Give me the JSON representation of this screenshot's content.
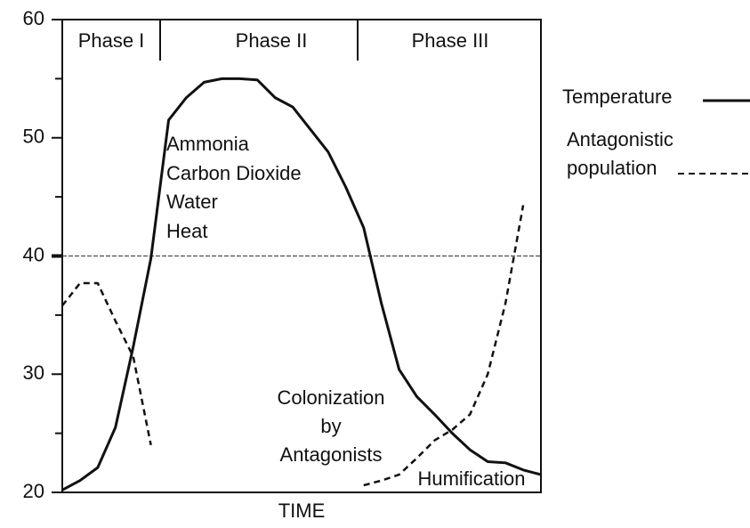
{
  "chart_data": {
    "type": "line",
    "xlabel": "TIME",
    "categories": [
      null,
      null,
      null,
      null,
      null,
      null,
      null,
      null,
      null,
      null,
      null,
      null,
      null,
      null,
      null,
      null,
      null,
      null,
      null,
      null,
      null,
      null,
      null,
      null,
      null,
      null,
      null,
      null
    ],
    "series": [
      {
        "name": "Temperature",
        "color": "#111111",
        "dash": "solid",
        "values": [
          20.2,
          21.0,
          22.1,
          25.5,
          32.3,
          39.8,
          51.5,
          53.4,
          54.7,
          55,
          55,
          54.9,
          53.4,
          52.6,
          50.7,
          48.8,
          45.8,
          42.4,
          36.0,
          30.4,
          28.1,
          26.6,
          25.0,
          23.6,
          22.6,
          22.5,
          21.9,
          21.5
        ]
      },
      {
        "name": "Antagonistic population",
        "color": "#111111",
        "dash": "dashed",
        "values": [
          35.8,
          37.7,
          37.7,
          34.5,
          31.5,
          24.0,
          null,
          null,
          null,
          null,
          null,
          null,
          null,
          null,
          null,
          null,
          null,
          20.6,
          21.0,
          21.5,
          22.9,
          24.4,
          25.3,
          26.6,
          30.0,
          36.0,
          44.3,
          null
        ]
      }
    ],
    "ylim": [
      20,
      60
    ],
    "yticks": [
      20,
      30,
      40,
      50,
      60
    ],
    "minor_yticks": [
      25,
      35,
      45,
      55
    ],
    "reference_line": 40,
    "phases": [
      "Phase I",
      "Phase II",
      "Phase III"
    ],
    "annotations": [
      "Ammonia",
      "Carbon Dioxide",
      "Water",
      "Heat",
      "Colonization",
      "by",
      "Antagonists",
      "Humification"
    ]
  }
}
